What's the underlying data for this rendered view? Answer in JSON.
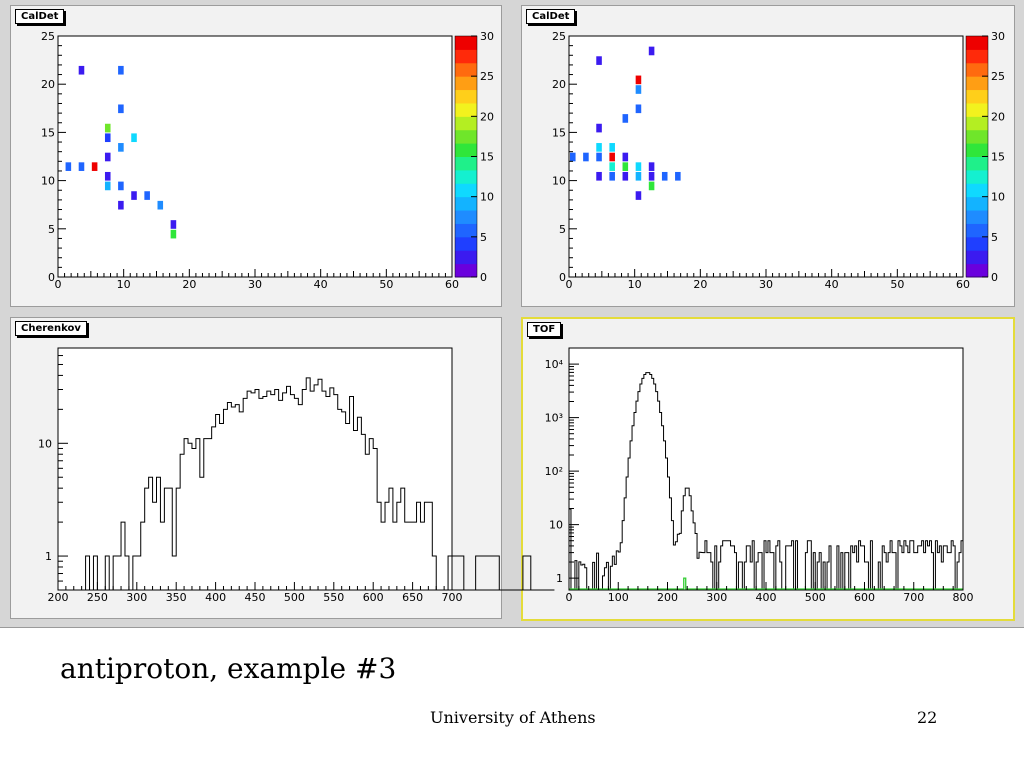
{
  "slide": {
    "caption": "antiproton, example #3",
    "footer_center": "University of Athens",
    "page_number": "22"
  },
  "colors": {
    "canvas_bg": "#d6d6d6",
    "pad_bg": "#f2f2f2",
    "active_pad_border": "#e4dc3a",
    "hist_line": "#000000",
    "tof_secondary_line": "#33cc33"
  },
  "palette": [
    "#6a00dd",
    "#3b1bf0",
    "#1f3fff",
    "#1f65ff",
    "#1f8cff",
    "#13b3ff",
    "#0fd9ff",
    "#14f0d0",
    "#1ff08a",
    "#2fe63a",
    "#6fe62a",
    "#b4ee22",
    "#f2f21e",
    "#ffcf1a",
    "#ff9e14",
    "#ff6a0f",
    "#ff2a0a",
    "#ee0000"
  ],
  "chart_data": [
    {
      "id": "caldet_left",
      "title": "CalDet",
      "type": "heatmap",
      "xlim": [
        0,
        60
      ],
      "ylim": [
        0,
        25
      ],
      "zlim": [
        0,
        30
      ],
      "xticks": [
        "0",
        "10",
        "20",
        "30",
        "40",
        "50",
        "60"
      ],
      "yticks": [
        "0",
        "5",
        "10",
        "15",
        "20",
        "25"
      ],
      "zticks": [
        "0",
        "5",
        "10",
        "15",
        "20",
        "25",
        "30"
      ],
      "cells": [
        {
          "x": 3,
          "y": 21,
          "z": 2
        },
        {
          "x": 9,
          "y": 21,
          "z": 5
        },
        {
          "x": 9,
          "y": 17,
          "z": 6
        },
        {
          "x": 7,
          "y": 15,
          "z": 17
        },
        {
          "x": 7,
          "y": 14,
          "z": 4
        },
        {
          "x": 11,
          "y": 14,
          "z": 11
        },
        {
          "x": 9,
          "y": 13,
          "z": 7
        },
        {
          "x": 7,
          "y": 12,
          "z": 3
        },
        {
          "x": 1,
          "y": 11,
          "z": 5
        },
        {
          "x": 3,
          "y": 11,
          "z": 6
        },
        {
          "x": 5,
          "y": 11,
          "z": 29
        },
        {
          "x": 7,
          "y": 10,
          "z": 2
        },
        {
          "x": 7,
          "y": 9,
          "z": 9
        },
        {
          "x": 9,
          "y": 9,
          "z": 6
        },
        {
          "x": 11,
          "y": 8,
          "z": 2
        },
        {
          "x": 13,
          "y": 8,
          "z": 5
        },
        {
          "x": 9,
          "y": 7,
          "z": 2
        },
        {
          "x": 15,
          "y": 7,
          "z": 7
        },
        {
          "x": 17,
          "y": 5,
          "z": 2
        },
        {
          "x": 17,
          "y": 4,
          "z": 15
        }
      ]
    },
    {
      "id": "caldet_right",
      "title": "CalDet",
      "type": "heatmap",
      "xlim": [
        0,
        60
      ],
      "ylim": [
        0,
        25
      ],
      "zlim": [
        0,
        30
      ],
      "xticks": [
        "0",
        "10",
        "20",
        "30",
        "40",
        "50",
        "60"
      ],
      "yticks": [
        "0",
        "5",
        "10",
        "15",
        "20",
        "25"
      ],
      "zticks": [
        "0",
        "5",
        "10",
        "15",
        "20",
        "25",
        "30"
      ],
      "cells": [
        {
          "x": 12,
          "y": 23,
          "z": 2
        },
        {
          "x": 4,
          "y": 22,
          "z": 2
        },
        {
          "x": 10,
          "y": 20,
          "z": 29
        },
        {
          "x": 10,
          "y": 19,
          "z": 7
        },
        {
          "x": 10,
          "y": 17,
          "z": 6
        },
        {
          "x": 8,
          "y": 16,
          "z": 5
        },
        {
          "x": 4,
          "y": 15,
          "z": 2
        },
        {
          "x": 4,
          "y": 13,
          "z": 10
        },
        {
          "x": 6,
          "y": 13,
          "z": 10
        },
        {
          "x": 0,
          "y": 12,
          "z": 5
        },
        {
          "x": 2,
          "y": 12,
          "z": 6
        },
        {
          "x": 4,
          "y": 12,
          "z": 5
        },
        {
          "x": 6,
          "y": 12,
          "z": 29
        },
        {
          "x": 8,
          "y": 12,
          "z": 2
        },
        {
          "x": 6,
          "y": 11,
          "z": 12
        },
        {
          "x": 8,
          "y": 11,
          "z": 15
        },
        {
          "x": 10,
          "y": 11,
          "z": 10
        },
        {
          "x": 12,
          "y": 11,
          "z": 3
        },
        {
          "x": 4,
          "y": 10,
          "z": 2
        },
        {
          "x": 6,
          "y": 10,
          "z": 5
        },
        {
          "x": 8,
          "y": 10,
          "z": 3
        },
        {
          "x": 10,
          "y": 10,
          "z": 9
        },
        {
          "x": 12,
          "y": 10,
          "z": 2
        },
        {
          "x": 14,
          "y": 10,
          "z": 5
        },
        {
          "x": 16,
          "y": 10,
          "z": 6
        },
        {
          "x": 12,
          "y": 9,
          "z": 16
        },
        {
          "x": 10,
          "y": 8,
          "z": 2
        }
      ]
    },
    {
      "id": "cherenkov",
      "title": "Cherenkov",
      "type": "histogram",
      "log_y": true,
      "xlim": [
        200,
        700
      ],
      "ylim": [
        0.5,
        70
      ],
      "xticks": [
        "200",
        "250",
        "300",
        "350",
        "400",
        "450",
        "500",
        "550",
        "600",
        "650",
        "700"
      ],
      "yticks": [
        {
          "v": 1,
          "label": "1"
        },
        {
          "v": 10,
          "label": "10"
        }
      ],
      "bin_width": 5,
      "x_start": 200,
      "values": [
        0,
        0,
        0,
        0,
        0,
        0,
        0,
        1,
        0,
        1,
        0,
        0,
        1,
        0,
        1,
        1,
        2,
        1,
        0,
        1,
        1,
        2,
        4,
        5,
        3,
        5,
        2,
        4,
        4,
        1,
        4,
        8,
        11,
        10,
        9,
        11,
        5,
        11,
        11,
        14,
        18,
        15,
        20,
        23,
        21,
        22,
        19,
        25,
        29,
        28,
        30,
        25,
        26,
        29,
        27,
        30,
        24,
        28,
        32,
        27,
        25,
        22,
        30,
        38,
        29,
        33,
        37,
        29,
        26,
        31,
        27,
        20,
        19,
        15,
        26,
        13,
        17,
        12,
        8,
        11,
        9,
        3,
        2,
        3,
        4,
        2,
        3,
        4,
        2,
        2,
        2,
        3,
        2,
        3,
        3,
        1,
        0,
        0,
        0,
        1,
        1,
        1,
        1,
        0,
        0,
        0,
        1,
        1,
        1,
        1,
        1,
        1,
        0,
        0,
        0,
        0,
        0,
        0,
        1,
        1,
        0,
        0,
        0,
        0,
        0,
        0
      ],
      "values_note_sparse": [
        0
      ]
    },
    {
      "id": "tof",
      "title": "TOF",
      "type": "histogram",
      "log_y": true,
      "xlim": [
        0,
        800
      ],
      "ylim": [
        0.6,
        20000
      ],
      "xticks": [
        "0",
        "100",
        "200",
        "300",
        "400",
        "500",
        "600",
        "700",
        "800"
      ],
      "yticks": [
        {
          "v": 1,
          "label": "1"
        },
        {
          "v": 10,
          "label": "10"
        },
        {
          "v": 100,
          "label": "10²"
        },
        {
          "v": 1000,
          "label": "10³"
        },
        {
          "v": 10000,
          "label": "10⁴"
        }
      ],
      "bin_width": 4,
      "x_start": 0,
      "peak": {
        "x": 160,
        "y": 7000
      },
      "secondary_peak": {
        "x": 240,
        "y": 50
      },
      "secondary_series_spike": {
        "x": 235,
        "y": 1
      }
    }
  ]
}
